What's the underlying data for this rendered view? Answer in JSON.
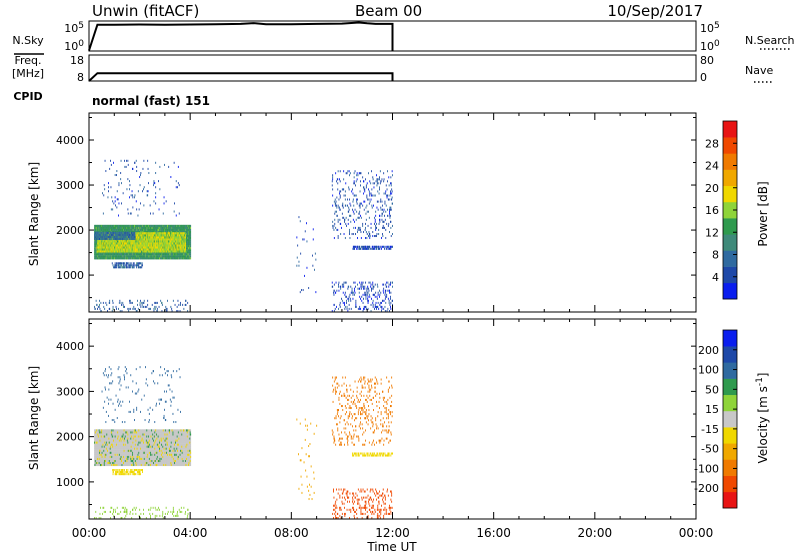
{
  "header": {
    "station": "Unwin (fitACF)",
    "beam": "Beam 00",
    "date": "10/Sep/2017"
  },
  "left_labels": {
    "nsky": "N.Sky",
    "freq_line1": "Freq.",
    "freq_line2": "[MHz]",
    "cpid": "CPID"
  },
  "right_labels": {
    "nsearch": "N.Search",
    "nave": "Nave"
  },
  "cpid_value": "normal (fast) 151",
  "colors": {
    "power": [
      "#0a1eee",
      "#1e48a8",
      "#2f6aa0",
      "#3f8a7a",
      "#2f9a4e",
      "#8fd43a",
      "#f0d800",
      "#f0a800",
      "#f07a00",
      "#f04800",
      "#e81414"
    ],
    "velocity": [
      "#e81414",
      "#f04800",
      "#f07a00",
      "#f0a800",
      "#f0d800",
      "#c8c8c8",
      "#8fd43a",
      "#2f9a4e",
      "#2f6aa0",
      "#1e48a8",
      "#0a1eee"
    ]
  },
  "chart_data": [
    {
      "type": "line",
      "name": "noise-panel",
      "left_ticks": [
        "10^5",
        "10^0"
      ],
      "right_ticks": [
        "10^5",
        "10^0"
      ],
      "x": [
        "00:00",
        "00:20",
        "01:00",
        "02:00",
        "03:00",
        "04:00",
        "05:00",
        "06:00",
        "06:30",
        "07:00",
        "08:00",
        "09:00",
        "10:00",
        "10:40",
        "11:00",
        "11:20",
        "12:00",
        "12:00"
      ],
      "series": [
        {
          "values": [
            0.0,
            0.92,
            0.92,
            0.93,
            0.92,
            0.93,
            0.94,
            0.95,
            0.98,
            0.94,
            0.94,
            0.95,
            0.96,
            1.0,
            0.97,
            0.95,
            0.95,
            0.0
          ]
        }
      ]
    },
    {
      "type": "line",
      "name": "frequency-panel",
      "left_ticks": [
        "18",
        "8"
      ],
      "right_ticks": [
        "80",
        "0"
      ],
      "x": [
        "00:00",
        "00:20",
        "12:00",
        "12:00"
      ],
      "series": [
        {
          "values": [
            8,
            11,
            11,
            8
          ]
        }
      ]
    },
    {
      "type": "heatmap",
      "name": "power",
      "xlabel": "",
      "ylabel": "Slant Range [km]",
      "colorbar_label": "Power [dB]",
      "colorbar_ticks": [
        "4",
        "8",
        "12",
        "16",
        "20",
        "24",
        "28"
      ],
      "colorbar_range": [
        0,
        32
      ],
      "xlim_hours": [
        0,
        24
      ],
      "ylim": [
        180,
        4600
      ],
      "y_ticks": [
        "1000",
        "2000",
        "3000",
        "4000"
      ],
      "blocks": [
        {
          "t": [
            0.2,
            4.0
          ],
          "r": [
            1350,
            2100
          ],
          "v": 12,
          "d": 1.0
        },
        {
          "t": [
            0.3,
            3.8
          ],
          "r": [
            1500,
            1950
          ],
          "v": 17,
          "d": 0.9
        },
        {
          "t": [
            0.2,
            1.8
          ],
          "r": [
            1780,
            1950
          ],
          "v": 8,
          "d": 0.8
        },
        {
          "t": [
            0.9,
            2.1
          ],
          "r": [
            1150,
            1250
          ],
          "v": 6,
          "d": 0.45
        },
        {
          "t": [
            0.2,
            3.9
          ],
          "r": [
            180,
            420
          ],
          "v": 6,
          "d": 0.09
        },
        {
          "t": [
            0.5,
            3.6
          ],
          "r": [
            2300,
            3550
          ],
          "v": 5,
          "d": 0.025
        },
        {
          "t": [
            8.2,
            9.0
          ],
          "r": [
            600,
            2400
          ],
          "v": 4,
          "d": 0.02
        },
        {
          "t": [
            9.6,
            12.0
          ],
          "r": [
            1800,
            3300
          ],
          "v": 5,
          "d": 0.08
        },
        {
          "t": [
            9.6,
            12.0
          ],
          "r": [
            180,
            850
          ],
          "v": 4,
          "d": 0.12
        },
        {
          "t": [
            10.4,
            12.0
          ],
          "r": [
            1560,
            1630
          ],
          "v": 4,
          "d": 0.5
        }
      ]
    },
    {
      "type": "heatmap",
      "name": "velocity",
      "xlabel": "Time UT",
      "ylabel": "Slant Range [km]",
      "colorbar_label": "Velocity [m s^-1]",
      "colorbar_ticks": [
        "-200",
        "-100",
        "-50",
        "-15",
        "15",
        "50",
        "100",
        "200"
      ],
      "colorbar_range": [
        -250,
        250
      ],
      "xlim_hours": [
        0,
        24
      ],
      "ylim": [
        180,
        4600
      ],
      "y_ticks": [
        "1000",
        "2000",
        "3000",
        "4000"
      ],
      "x_ticks": [
        "00:00",
        "04:00",
        "08:00",
        "12:00",
        "16:00",
        "20:00",
        "00:00"
      ],
      "blocks": [
        {
          "t": [
            0.2,
            4.0
          ],
          "r": [
            1350,
            2150
          ],
          "v": 0,
          "d": 1.0
        },
        {
          "t": [
            0.2,
            4.0
          ],
          "r": [
            1350,
            2150
          ],
          "v": -60,
          "d": 0.05
        },
        {
          "t": [
            0.2,
            4.0
          ],
          "r": [
            1350,
            2150
          ],
          "v": 80,
          "d": 0.04
        },
        {
          "t": [
            0.2,
            3.9
          ],
          "r": [
            180,
            420
          ],
          "v": 30,
          "d": 0.08
        },
        {
          "t": [
            0.9,
            2.1
          ],
          "r": [
            1150,
            1250
          ],
          "v": -30,
          "d": 0.4
        },
        {
          "t": [
            0.5,
            3.6
          ],
          "r": [
            2300,
            3550
          ],
          "v": 120,
          "d": 0.025
        },
        {
          "t": [
            8.2,
            9.0
          ],
          "r": [
            600,
            2400
          ],
          "v": -80,
          "d": 0.02
        },
        {
          "t": [
            9.6,
            12.0
          ],
          "r": [
            1800,
            3300
          ],
          "v": -120,
          "d": 0.07
        },
        {
          "t": [
            9.6,
            12.0
          ],
          "r": [
            180,
            850
          ],
          "v": -180,
          "d": 0.1
        },
        {
          "t": [
            10.4,
            12.0
          ],
          "r": [
            1560,
            1630
          ],
          "v": -40,
          "d": 0.5
        }
      ]
    }
  ]
}
